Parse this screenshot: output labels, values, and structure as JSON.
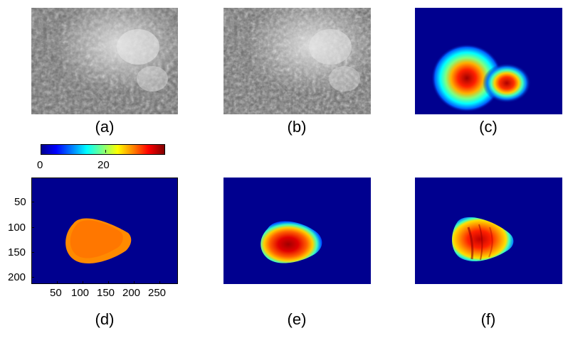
{
  "captions": {
    "a": "(a)",
    "b": "(b)",
    "c": "(c)",
    "d": "(d)",
    "e": "(e)",
    "f": "(f)"
  },
  "colorbar": {
    "ticks": [
      "0",
      "20"
    ],
    "colormap": "jet"
  },
  "axes_d": {
    "y_ticks": [
      "50",
      "100",
      "150",
      "200"
    ],
    "x_ticks": [
      "50",
      "100",
      "150",
      "200",
      "250"
    ]
  },
  "colors": {
    "background_blue": "#00008f"
  }
}
